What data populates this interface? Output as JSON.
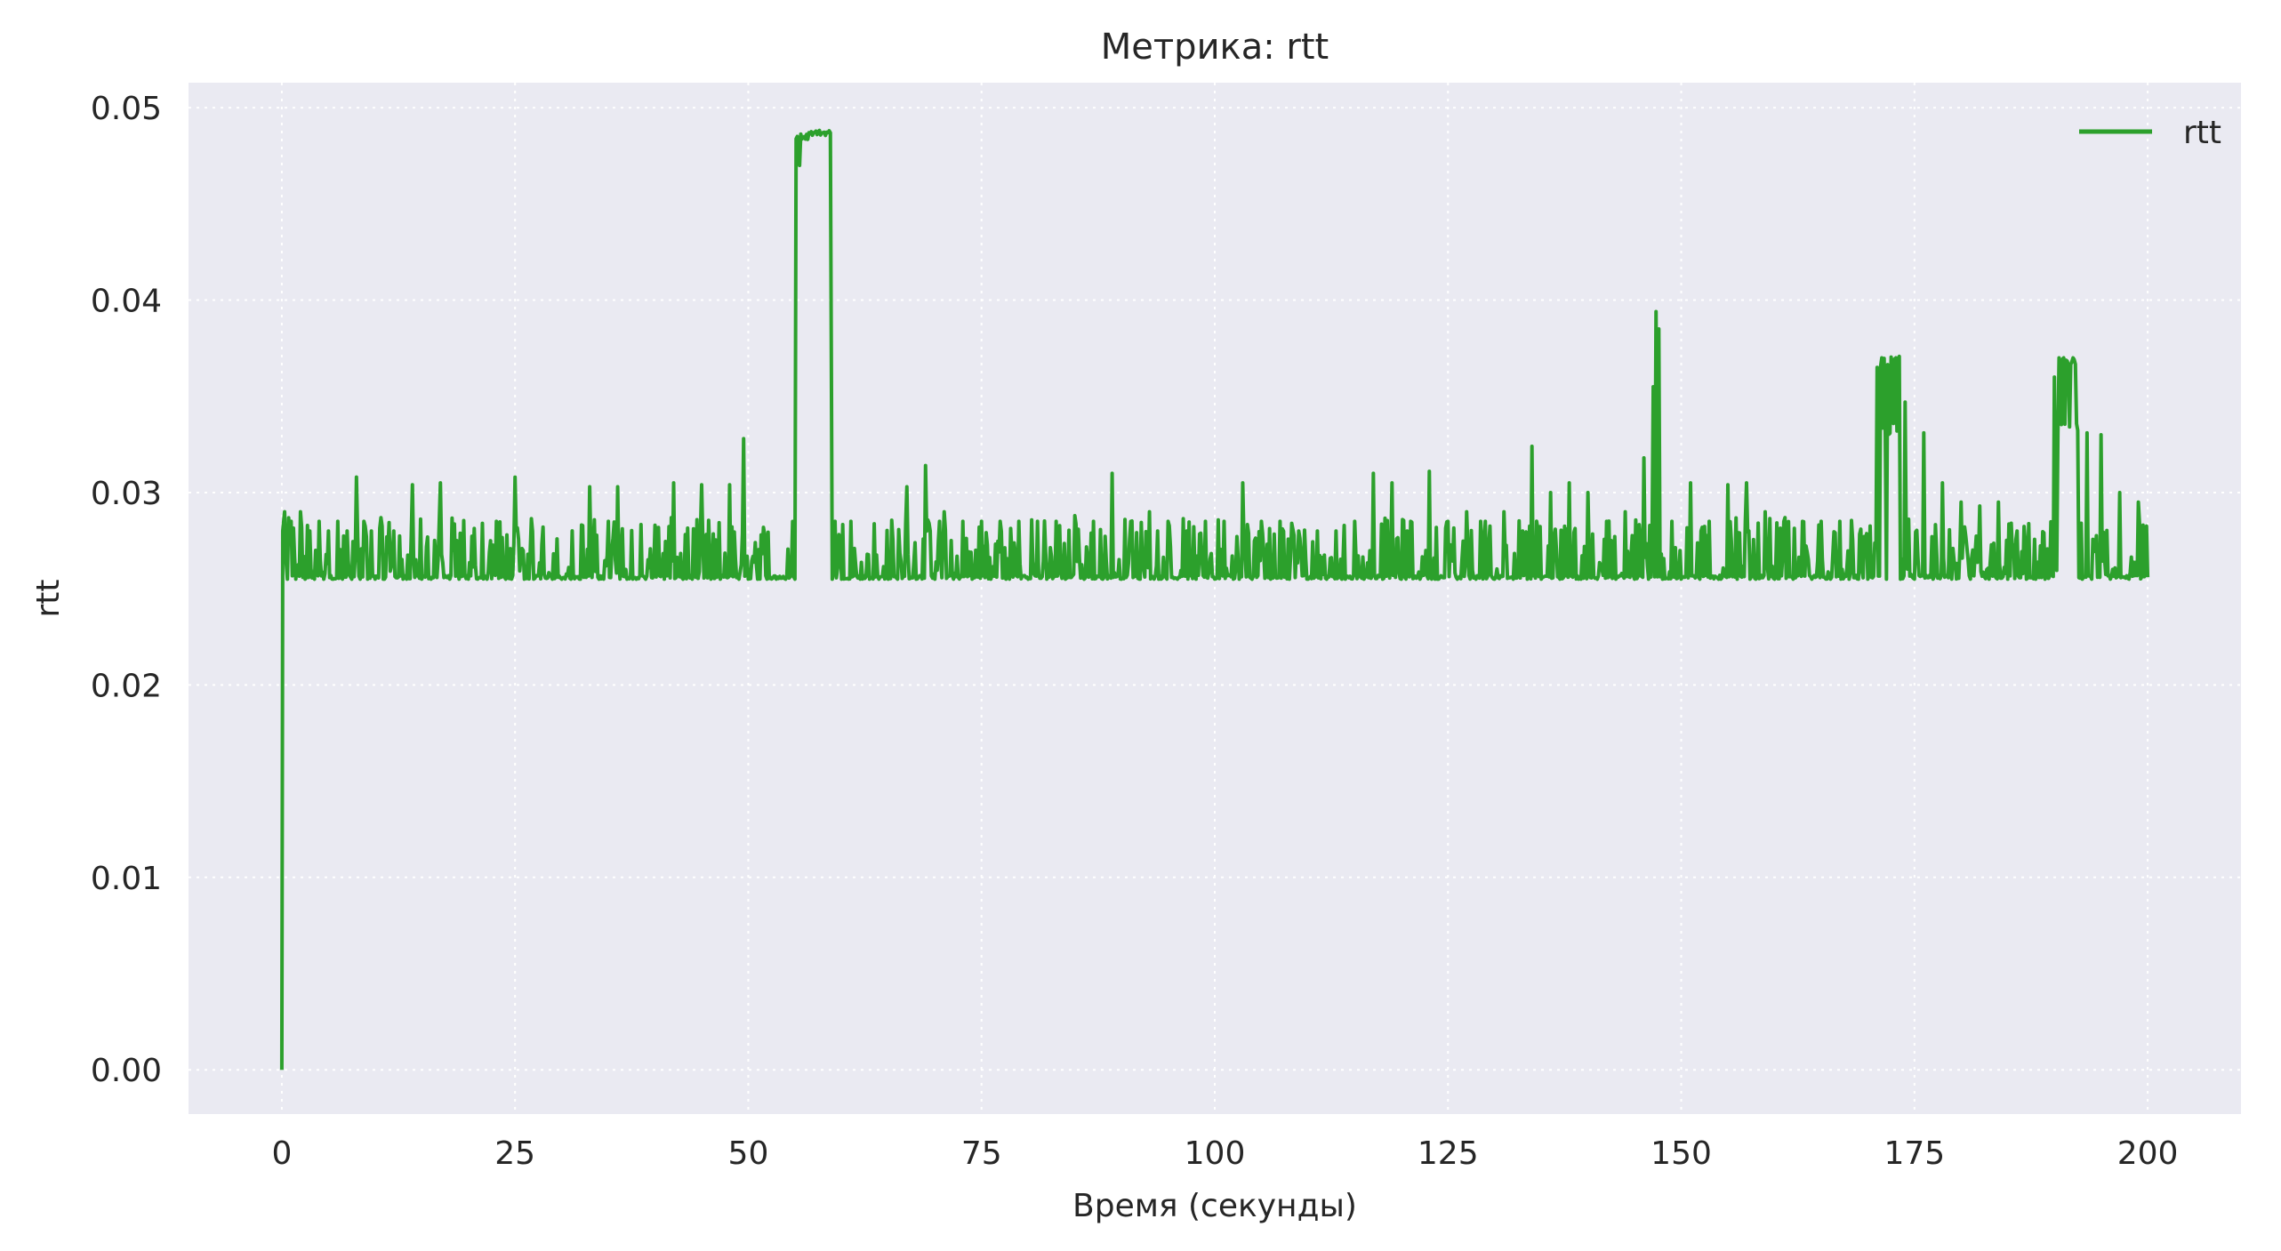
{
  "chart_data": {
    "type": "line",
    "title": "Метрика: rtt",
    "xlabel": "Время (секунды)",
    "ylabel": "rtt",
    "xlim": [
      -10,
      210
    ],
    "ylim": [
      -0.0023,
      0.0513
    ],
    "xticks": [
      0,
      25,
      50,
      75,
      100,
      125,
      150,
      175,
      200
    ],
    "xtick_labels": [
      "0",
      "25",
      "50",
      "75",
      "100",
      "125",
      "150",
      "175",
      "200"
    ],
    "yticks": [
      0.0,
      0.01,
      0.02,
      0.03,
      0.04,
      0.05
    ],
    "ytick_labels": [
      "0.00",
      "0.01",
      "0.02",
      "0.03",
      "0.04",
      "0.05"
    ],
    "grid": true,
    "legend_position": "top-right",
    "colors": {
      "background": "#eaeaf2",
      "grid": "#ffffff",
      "series": "#2ca02c"
    },
    "series": [
      {
        "name": "rtt",
        "color": "#2ca02c",
        "baseline": 0.0255,
        "x": [
          0,
          0.1,
          0.3,
          0.6,
          1.0,
          1.5,
          2.0,
          2.5,
          3.0,
          3.5,
          4.0,
          4.5,
          5.0,
          5.5,
          6.0,
          6.5,
          7.0,
          7.5,
          8.0,
          8.4,
          8.8,
          9.2,
          9.6,
          10.0,
          11.0,
          12.0,
          13.0,
          14.0,
          15.0,
          16.0,
          17.0,
          18.0,
          19.0,
          20.0,
          21.0,
          22.0,
          23.0,
          24.0,
          25.0,
          26.0,
          27.0,
          28.0,
          29.0,
          30.0,
          31.0,
          32.0,
          33.0,
          34.0,
          35.0,
          36.0,
          37.0,
          38.0,
          39.0,
          40.0,
          41.0,
          42.0,
          43.0,
          44.0,
          45.0,
          46.0,
          47.0,
          48.0,
          49.0,
          49.5,
          50.0,
          51.0,
          52.0,
          53.0,
          54.0,
          55.0,
          55.5,
          56.0,
          56.5,
          57.0,
          58.0,
          58.8,
          59.0,
          59.3,
          60.0,
          61.0,
          62.0,
          63.0,
          64.0,
          65.0,
          66.0,
          67.0,
          68.0,
          69.0,
          70.0,
          71.0,
          72.0,
          73.0,
          74.0,
          75.0,
          76.0,
          77.0,
          78.0,
          79.0,
          80.0,
          81.0,
          82.0,
          83.0,
          84.0,
          85.0,
          86.0,
          87.0,
          88.0,
          89.0,
          90.0,
          91.0,
          92.0,
          93.0,
          94.0,
          95.0,
          96.0,
          97.0,
          98.0,
          99.0,
          100.0,
          101.0,
          102.0,
          103.0,
          104.0,
          105.0,
          106.0,
          107.0,
          108.0,
          109.0,
          110.0,
          111.0,
          112.0,
          113.0,
          114.0,
          115.0,
          116.0,
          117.0,
          118.0,
          119.0,
          120.0,
          121.0,
          122.0,
          123.0,
          124.0,
          125.0,
          126.0,
          127.0,
          128.0,
          129.0,
          130.0,
          131.0,
          132.0,
          133.0,
          133.5,
          134.0,
          135.0,
          136.0,
          137.0,
          138.0,
          139.0,
          140.0,
          141.0,
          142.0,
          143.0,
          144.0,
          145.0,
          146.0,
          146.5,
          147.0,
          147.3,
          147.6,
          148.0,
          149.0,
          150.0,
          151.0,
          152.0,
          153.0,
          154.0,
          155.0,
          156.0,
          157.0,
          158.0,
          159.0,
          160.0,
          161.0,
          162.0,
          163.0,
          164.0,
          165.0,
          166.0,
          167.0,
          168.0,
          169.0,
          170.0,
          171.0,
          171.5,
          172.0,
          173.0,
          173.5,
          174.0,
          175.0,
          176.0,
          177.0,
          178.0,
          179.0,
          180.0,
          181.0,
          182.0,
          183.0,
          184.0,
          185.0,
          186.0,
          187.0,
          188.0,
          189.0,
          190.0,
          190.5,
          191.0,
          192.0,
          193.0,
          193.5,
          194.0,
          195.0,
          196.0,
          197.0,
          198.0,
          199.0,
          200.0
        ],
        "values": [
          0.0,
          0.028,
          0.029,
          0.0255,
          0.0285,
          0.0255,
          0.029,
          0.0255,
          0.028,
          0.0255,
          0.0285,
          0.0255,
          0.028,
          0.0255,
          0.0285,
          0.0255,
          0.028,
          0.0255,
          0.0308,
          0.0255,
          0.0285,
          0.0255,
          0.028,
          0.0255,
          0.0255,
          0.028,
          0.0255,
          0.0304,
          0.0255,
          0.0255,
          0.0305,
          0.0255,
          0.0255,
          0.0255,
          0.0255,
          0.0255,
          0.0285,
          0.0255,
          0.0308,
          0.0255,
          0.0255,
          0.0282,
          0.0255,
          0.0255,
          0.0255,
          0.0255,
          0.0303,
          0.0255,
          0.0285,
          0.0303,
          0.0255,
          0.0255,
          0.0255,
          0.0283,
          0.0255,
          0.0305,
          0.0255,
          0.0255,
          0.0304,
          0.0255,
          0.0255,
          0.0304,
          0.0255,
          0.0328,
          0.0255,
          0.0255,
          0.0255,
          0.0255,
          0.0255,
          0.0255,
          0.047,
          0.0485,
          0.0487,
          0.0487,
          0.0487,
          0.0487,
          0.0255,
          0.0285,
          0.0255,
          0.0285,
          0.0255,
          0.0255,
          0.0255,
          0.0255,
          0.0255,
          0.0303,
          0.0255,
          0.0314,
          0.0255,
          0.029,
          0.0255,
          0.0285,
          0.0255,
          0.0285,
          0.0255,
          0.0285,
          0.0255,
          0.0285,
          0.0255,
          0.0285,
          0.0255,
          0.0285,
          0.0255,
          0.0288,
          0.0255,
          0.0285,
          0.0255,
          0.031,
          0.0255,
          0.0285,
          0.0255,
          0.029,
          0.0255,
          0.0285,
          0.0255,
          0.028,
          0.0255,
          0.0285,
          0.0255,
          0.0285,
          0.0255,
          0.0305,
          0.0255,
          0.0285,
          0.0255,
          0.0285,
          0.0255,
          0.028,
          0.0255,
          0.028,
          0.0255,
          0.028,
          0.0255,
          0.0285,
          0.0255,
          0.031,
          0.0255,
          0.0305,
          0.0255,
          0.0285,
          0.0255,
          0.0311,
          0.0255,
          0.0285,
          0.0255,
          0.029,
          0.0255,
          0.0285,
          0.0255,
          0.029,
          0.0255,
          0.028,
          0.0255,
          0.0324,
          0.0255,
          0.03,
          0.0255,
          0.0305,
          0.0255,
          0.03,
          0.0255,
          0.0285,
          0.0255,
          0.029,
          0.0255,
          0.0318,
          0.0255,
          0.0355,
          0.0394,
          0.0385,
          0.0255,
          0.0285,
          0.0255,
          0.0305,
          0.0255,
          0.0285,
          0.0255,
          0.0304,
          0.0255,
          0.0305,
          0.0255,
          0.029,
          0.0255,
          0.0285,
          0.0255,
          0.0285,
          0.0255,
          0.0285,
          0.0255,
          0.0285,
          0.0255,
          0.0255,
          0.0255,
          0.0365,
          0.037,
          0.0255,
          0.037,
          0.0255,
          0.0347,
          0.0255,
          0.0331,
          0.0255,
          0.0305,
          0.0255,
          0.0295,
          0.0255,
          0.0293,
          0.0255,
          0.0295,
          0.0255,
          0.028,
          0.0255,
          0.0255,
          0.0255,
          0.036,
          0.037,
          0.037,
          0.037,
          0.0255,
          0.0331,
          0.0255,
          0.033,
          0.0255,
          0.03,
          0.0255,
          0.0295,
          0.0256
        ]
      }
    ]
  }
}
